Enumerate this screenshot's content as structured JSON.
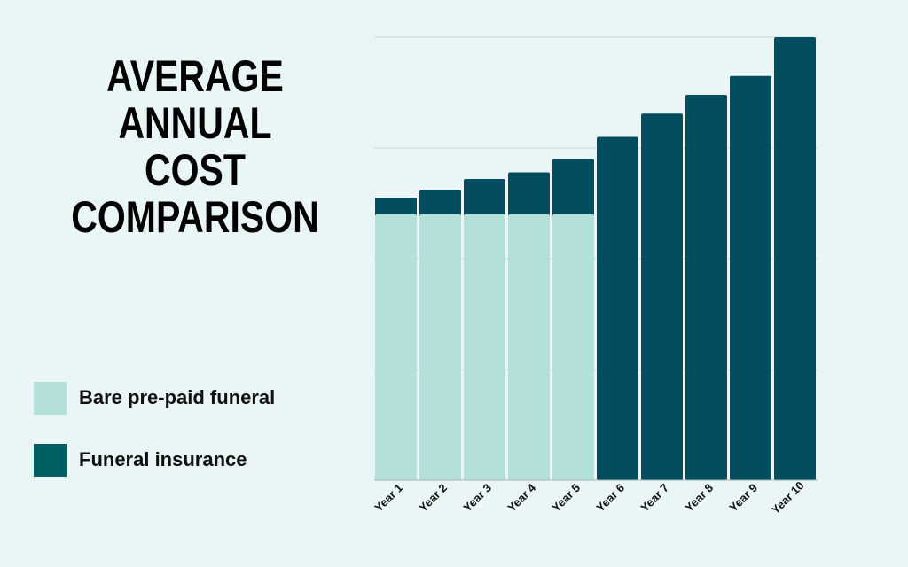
{
  "title_lines": [
    "AVERAGE",
    "ANNUAL COST",
    "COMPARISON"
  ],
  "legend": [
    {
      "label": "Bare pre-paid funeral",
      "color": "#b3e0d9"
    },
    {
      "label": "Funeral insurance",
      "color": "#005f63"
    }
  ],
  "colors": {
    "prepaid": "#b3e0d9",
    "insurance": "#024d5e",
    "grid": "#c8dcdb",
    "background": "#eaf6f5"
  },
  "chart_data": {
    "type": "bar",
    "title": "AVERAGE ANNUAL COST COMPARISON",
    "categories": [
      "Year 1",
      "Year 2",
      "Year 3",
      "Year 4",
      "Year 5",
      "Year 6",
      "Year 7",
      "Year 8",
      "Year 9",
      "Year 10"
    ],
    "series": [
      {
        "name": "Bare pre-paid funeral",
        "values": [
          2.4,
          2.4,
          2.4,
          2.4,
          2.4,
          0,
          0,
          0,
          0,
          0
        ]
      },
      {
        "name": "Funeral insurance",
        "values": [
          2.55,
          2.62,
          2.72,
          2.78,
          2.9,
          3.1,
          3.31,
          3.48,
          3.65,
          4.0
        ]
      }
    ],
    "ylim": [
      0,
      4
    ],
    "grid": true,
    "legend_position": "left"
  }
}
